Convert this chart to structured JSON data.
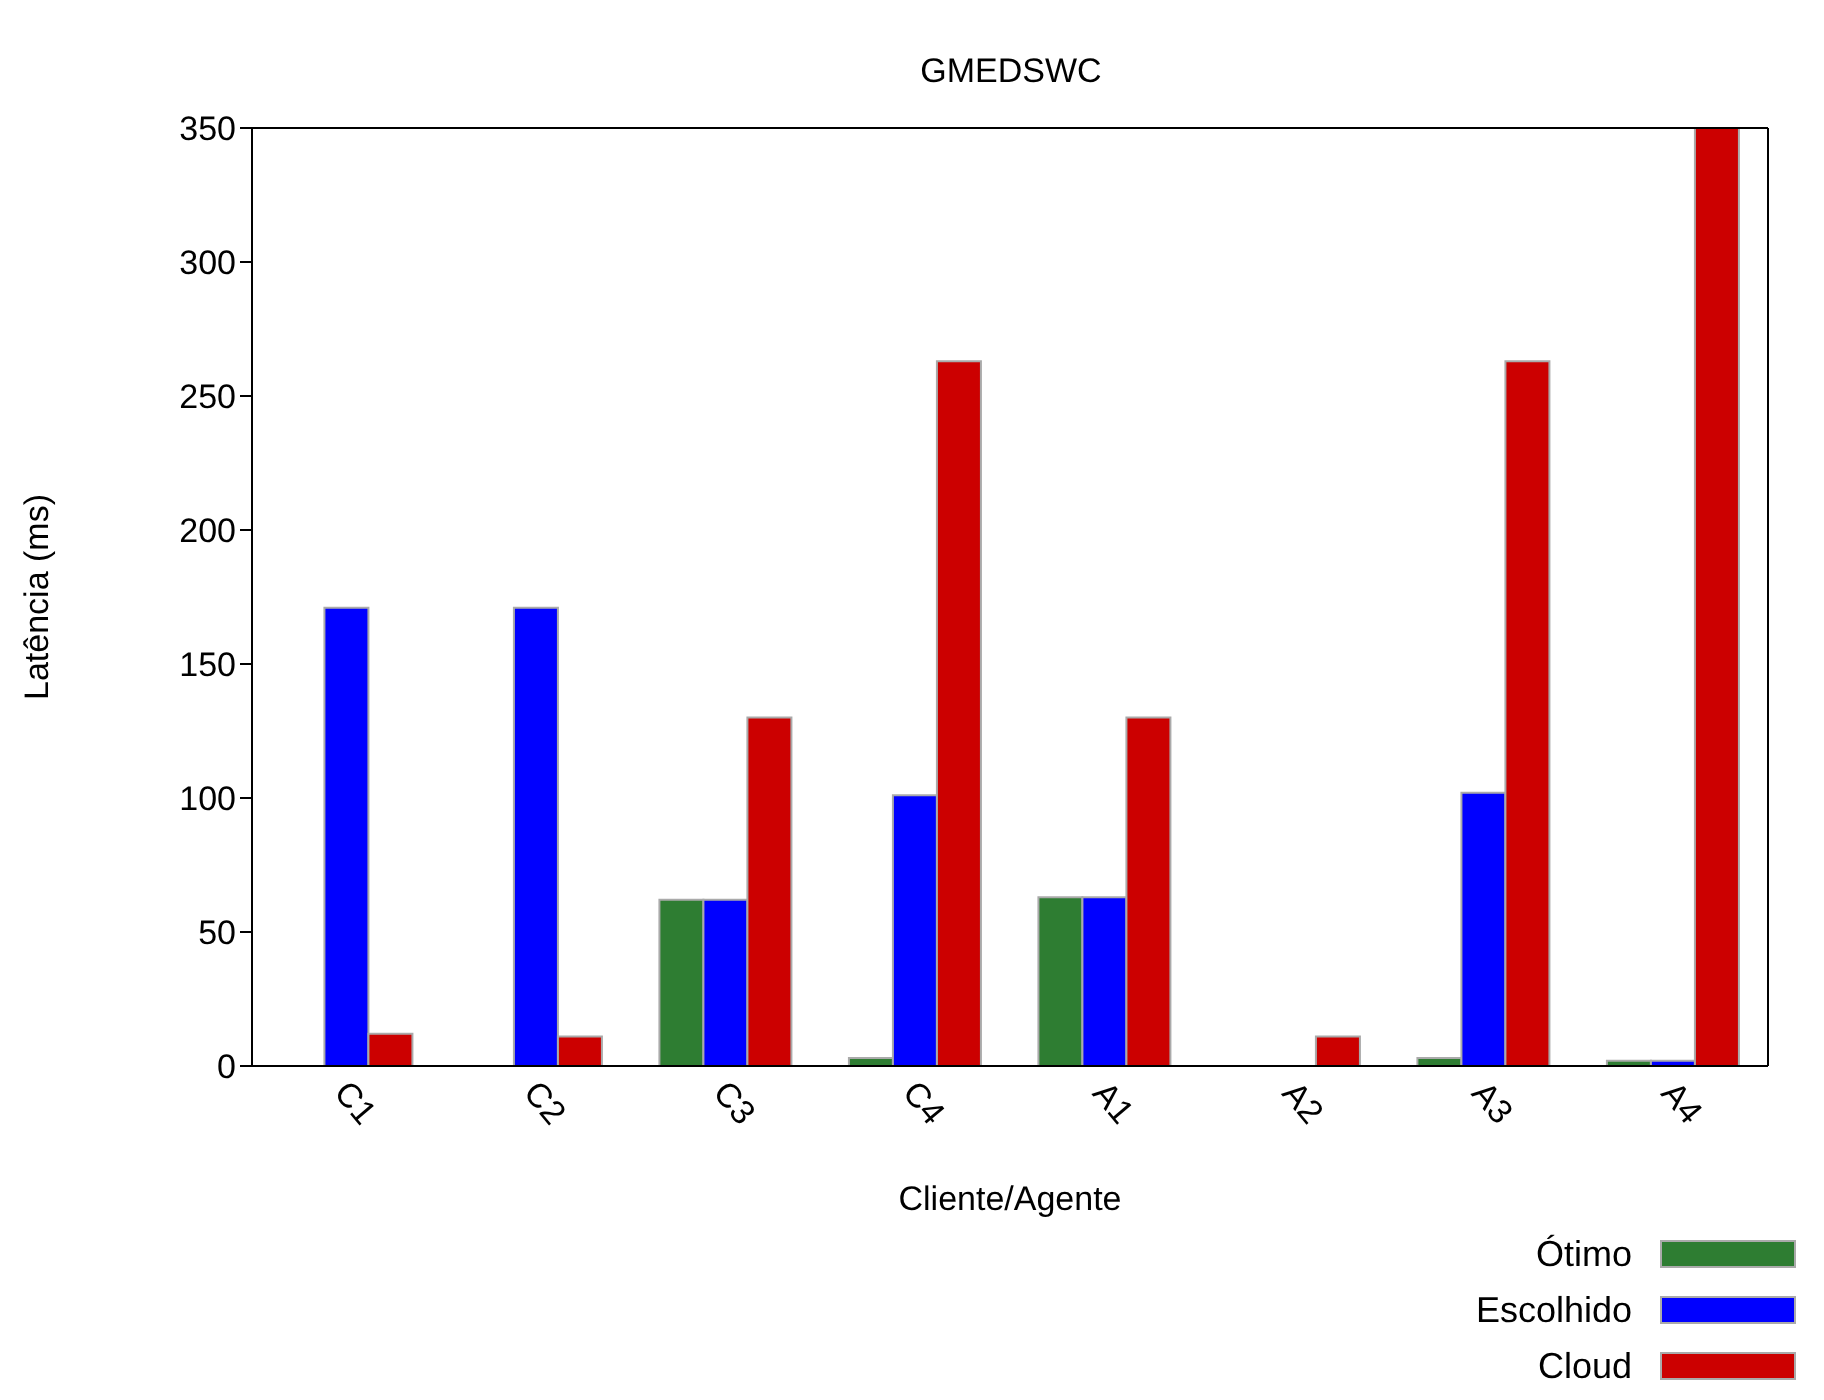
{
  "chart_data": {
    "type": "bar",
    "title": "GMEDSWC",
    "xlabel": "Cliente/Agente",
    "ylabel": "Latência (ms)",
    "categories": [
      "C1",
      "C2",
      "C3",
      "C4",
      "A1",
      "A2",
      "A3",
      "A4"
    ],
    "series": [
      {
        "name": "Ótimo",
        "color": "#2e7d32",
        "values": [
          null,
          null,
          62,
          3,
          63,
          null,
          3,
          2
        ]
      },
      {
        "name": "Escolhido",
        "color": "#0000ff",
        "values": [
          171,
          171,
          62,
          101,
          63,
          null,
          102,
          2
        ]
      },
      {
        "name": "Cloud",
        "color": "#cc0000",
        "values": [
          12,
          11,
          130,
          263,
          130,
          11,
          263,
          350
        ]
      }
    ],
    "ylim": [
      0,
      350
    ],
    "yticks": [
      0,
      50,
      100,
      150,
      200,
      250,
      300,
      350
    ],
    "grid": false,
    "legend": "bottom right"
  }
}
